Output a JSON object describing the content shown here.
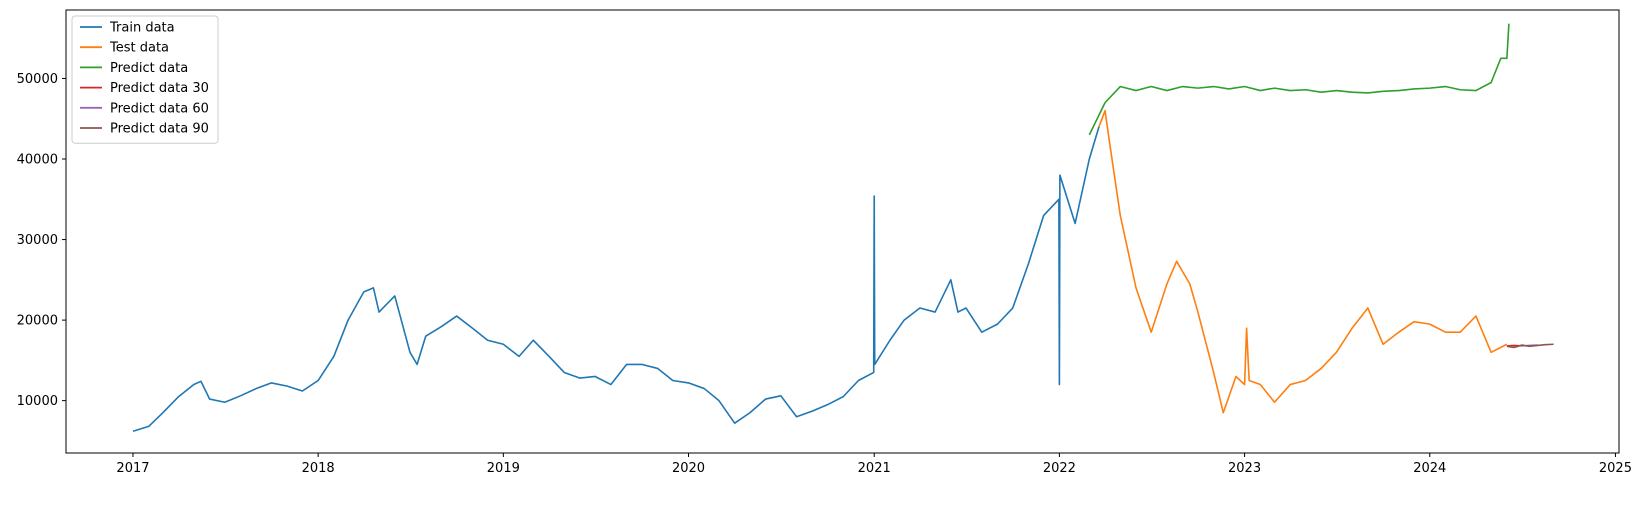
{
  "chart_data": {
    "type": "line",
    "title": "",
    "xlabel": "",
    "ylabel": "",
    "x_axis_type": "date",
    "xlim": [
      "2016-08-22",
      "2025-01-08"
    ],
    "ylim": [
      3500,
      58500
    ],
    "x_ticks": [
      "2017",
      "2018",
      "2019",
      "2020",
      "2021",
      "2022",
      "2023",
      "2024",
      "2025"
    ],
    "y_ticks": [
      10000,
      20000,
      30000,
      40000,
      50000
    ],
    "grid": false,
    "legend_position": "top-left",
    "series": [
      {
        "name": "Train data",
        "color": "#1f77b4",
        "points": [
          [
            "2017-01-01",
            6200
          ],
          [
            "2017-02-01",
            6800
          ],
          [
            "2017-03-01",
            8500
          ],
          [
            "2017-04-01",
            10500
          ],
          [
            "2017-05-01",
            12000
          ],
          [
            "2017-05-15",
            12400
          ],
          [
            "2017-06-01",
            10200
          ],
          [
            "2017-07-01",
            9800
          ],
          [
            "2017-08-01",
            10600
          ],
          [
            "2017-09-01",
            11500
          ],
          [
            "2017-10-01",
            12200
          ],
          [
            "2017-11-01",
            11800
          ],
          [
            "2017-12-01",
            11200
          ],
          [
            "2018-01-01",
            12500
          ],
          [
            "2018-02-01",
            15500
          ],
          [
            "2018-03-01",
            20000
          ],
          [
            "2018-04-01",
            23500
          ],
          [
            "2018-04-20",
            24000
          ],
          [
            "2018-05-01",
            21000
          ],
          [
            "2018-06-01",
            23000
          ],
          [
            "2018-07-01",
            16000
          ],
          [
            "2018-07-15",
            14500
          ],
          [
            "2018-08-01",
            18000
          ],
          [
            "2018-09-01",
            19200
          ],
          [
            "2018-10-01",
            20500
          ],
          [
            "2018-11-01",
            19000
          ],
          [
            "2018-12-01",
            17500
          ],
          [
            "2019-01-01",
            17000
          ],
          [
            "2019-02-01",
            15500
          ],
          [
            "2019-03-01",
            17500
          ],
          [
            "2019-04-01",
            15500
          ],
          [
            "2019-05-01",
            13500
          ],
          [
            "2019-06-01",
            12800
          ],
          [
            "2019-07-01",
            13000
          ],
          [
            "2019-08-01",
            12000
          ],
          [
            "2019-09-01",
            14500
          ],
          [
            "2019-10-01",
            14500
          ],
          [
            "2019-11-01",
            14000
          ],
          [
            "2019-12-01",
            12500
          ],
          [
            "2020-01-01",
            12200
          ],
          [
            "2020-02-01",
            11500
          ],
          [
            "2020-03-01",
            10000
          ],
          [
            "2020-04-01",
            7200
          ],
          [
            "2020-05-01",
            8500
          ],
          [
            "2020-06-01",
            10200
          ],
          [
            "2020-07-01",
            10600
          ],
          [
            "2020-08-01",
            8000
          ],
          [
            "2020-09-01",
            8700
          ],
          [
            "2020-10-01",
            9500
          ],
          [
            "2020-11-01",
            10500
          ],
          [
            "2020-12-01",
            12500
          ],
          [
            "2020-12-31",
            13500
          ],
          [
            "2021-01-01",
            35400
          ],
          [
            "2021-01-02",
            14500
          ],
          [
            "2021-02-01",
            17500
          ],
          [
            "2021-03-01",
            20000
          ],
          [
            "2021-04-01",
            21500
          ],
          [
            "2021-05-01",
            21000
          ],
          [
            "2021-06-01",
            25000
          ],
          [
            "2021-06-15",
            21000
          ],
          [
            "2021-07-01",
            21500
          ],
          [
            "2021-08-01",
            18500
          ],
          [
            "2021-09-01",
            19500
          ],
          [
            "2021-10-01",
            21500
          ],
          [
            "2021-11-01",
            27000
          ],
          [
            "2021-12-01",
            33000
          ],
          [
            "2021-12-31",
            35000
          ],
          [
            "2022-01-01",
            12000
          ],
          [
            "2022-01-02",
            38000
          ],
          [
            "2022-02-01",
            32000
          ],
          [
            "2022-03-01",
            40000
          ],
          [
            "2022-03-20",
            44000
          ]
        ]
      },
      {
        "name": "Test data",
        "color": "#ff7f0e",
        "points": [
          [
            "2022-03-20",
            44000
          ],
          [
            "2022-04-01",
            46000
          ],
          [
            "2022-04-10",
            42000
          ],
          [
            "2022-05-01",
            33000
          ],
          [
            "2022-06-01",
            24000
          ],
          [
            "2022-07-01",
            18500
          ],
          [
            "2022-08-01",
            24500
          ],
          [
            "2022-08-20",
            27300
          ],
          [
            "2022-09-15",
            24500
          ],
          [
            "2022-10-01",
            21000
          ],
          [
            "2022-11-01",
            13500
          ],
          [
            "2022-11-20",
            8500
          ],
          [
            "2022-12-15",
            13000
          ],
          [
            "2023-01-01",
            12000
          ],
          [
            "2023-01-05",
            19000
          ],
          [
            "2023-01-10",
            12500
          ],
          [
            "2023-02-01",
            12000
          ],
          [
            "2023-03-01",
            9800
          ],
          [
            "2023-04-01",
            12000
          ],
          [
            "2023-05-01",
            12500
          ],
          [
            "2023-06-01",
            14000
          ],
          [
            "2023-07-01",
            16000
          ],
          [
            "2023-08-01",
            19000
          ],
          [
            "2023-09-01",
            21500
          ],
          [
            "2023-10-01",
            17000
          ],
          [
            "2023-11-01",
            18500
          ],
          [
            "2023-12-01",
            19800
          ],
          [
            "2024-01-01",
            19500
          ],
          [
            "2024-02-01",
            18500
          ],
          [
            "2024-03-01",
            18500
          ],
          [
            "2024-04-01",
            20500
          ],
          [
            "2024-05-01",
            16000
          ],
          [
            "2024-06-01",
            17000
          ]
        ]
      },
      {
        "name": "Predict data",
        "color": "#2ca02c",
        "points": [
          [
            "2022-03-01",
            43000
          ],
          [
            "2022-04-01",
            47000
          ],
          [
            "2022-05-01",
            49000
          ],
          [
            "2022-06-01",
            48500
          ],
          [
            "2022-07-01",
            49000
          ],
          [
            "2022-08-01",
            48500
          ],
          [
            "2022-09-01",
            49000
          ],
          [
            "2022-10-01",
            48800
          ],
          [
            "2022-11-01",
            49000
          ],
          [
            "2022-12-01",
            48700
          ],
          [
            "2023-01-01",
            49000
          ],
          [
            "2023-02-01",
            48500
          ],
          [
            "2023-03-01",
            48800
          ],
          [
            "2023-04-01",
            48500
          ],
          [
            "2023-05-01",
            48600
          ],
          [
            "2023-06-01",
            48300
          ],
          [
            "2023-07-01",
            48500
          ],
          [
            "2023-08-01",
            48300
          ],
          [
            "2023-09-01",
            48200
          ],
          [
            "2023-10-01",
            48400
          ],
          [
            "2023-11-01",
            48500
          ],
          [
            "2023-12-01",
            48700
          ],
          [
            "2024-01-01",
            48800
          ],
          [
            "2024-02-01",
            49000
          ],
          [
            "2024-03-01",
            48600
          ],
          [
            "2024-04-01",
            48500
          ],
          [
            "2024-05-01",
            49500
          ],
          [
            "2024-05-20",
            52500
          ],
          [
            "2024-06-01",
            52500
          ],
          [
            "2024-06-05",
            56800
          ]
        ]
      },
      {
        "name": "Predict data 30",
        "color": "#d62728",
        "points": [
          [
            "2024-06-01",
            16800
          ],
          [
            "2024-06-15",
            16850
          ],
          [
            "2024-07-01",
            16800
          ]
        ]
      },
      {
        "name": "Predict data 60",
        "color": "#9467bd",
        "points": [
          [
            "2024-07-01",
            16800
          ],
          [
            "2024-07-15",
            16850
          ],
          [
            "2024-08-01",
            16900
          ]
        ]
      },
      {
        "name": "Predict data 90",
        "color": "#8c564b",
        "points": [
          [
            "2024-06-01",
            16750
          ],
          [
            "2024-06-15",
            16600
          ],
          [
            "2024-07-01",
            16900
          ],
          [
            "2024-07-15",
            16750
          ],
          [
            "2024-08-01",
            16850
          ],
          [
            "2024-08-15",
            16950
          ],
          [
            "2024-09-01",
            17000
          ]
        ]
      }
    ]
  }
}
